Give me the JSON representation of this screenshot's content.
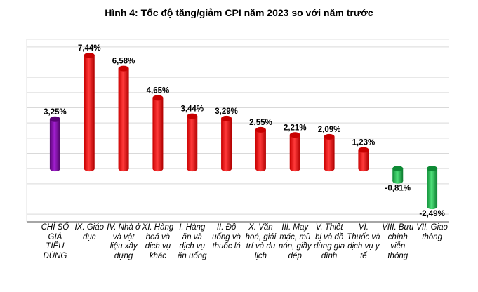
{
  "chart_data": {
    "type": "bar",
    "style": "3d-cylinder",
    "title": "Hình 4: Tốc độ tăng/giảm CPI năm 2023 so với năm trước",
    "xlabel": "",
    "ylabel": "",
    "ylim": [
      -3.5,
      8.5
    ],
    "grid": true,
    "legend": "none",
    "categories": [
      "CHỈ SỐ GIÁ TIÊU DÙNG",
      "IX. Giáo dục",
      "IV. Nhà ở và vật liệu xây dựng",
      "XI. Hàng hoá và dịch vụ khác",
      "I. Hàng ăn và dịch vụ ăn uống",
      "II. Đồ uống và thuốc lá",
      "X. Văn hoá, giải trí và du lịch",
      "III. May mặc, mũ nón, giầy dép",
      "V. Thiết bị và đồ dùng gia đình",
      "VI. Thuốc và dịch vụ y tế",
      "VIII. Bưu chính viễn thông",
      "VII. Giao thông"
    ],
    "values": [
      3.25,
      7.44,
      6.58,
      4.65,
      3.44,
      3.29,
      2.55,
      2.21,
      2.09,
      1.23,
      -0.81,
      -2.49
    ],
    "data_labels": [
      "3,25%",
      "7,44%",
      "6,58%",
      "4,65%",
      "3,44%",
      "3,29%",
      "2,55%",
      "2,21%",
      "2,09%",
      "1,23%",
      "-0,81%",
      "-2,49%"
    ],
    "colors": {
      "total": "#7a0a9e",
      "positive": "#ff0000",
      "negative": "#1db94a"
    }
  }
}
